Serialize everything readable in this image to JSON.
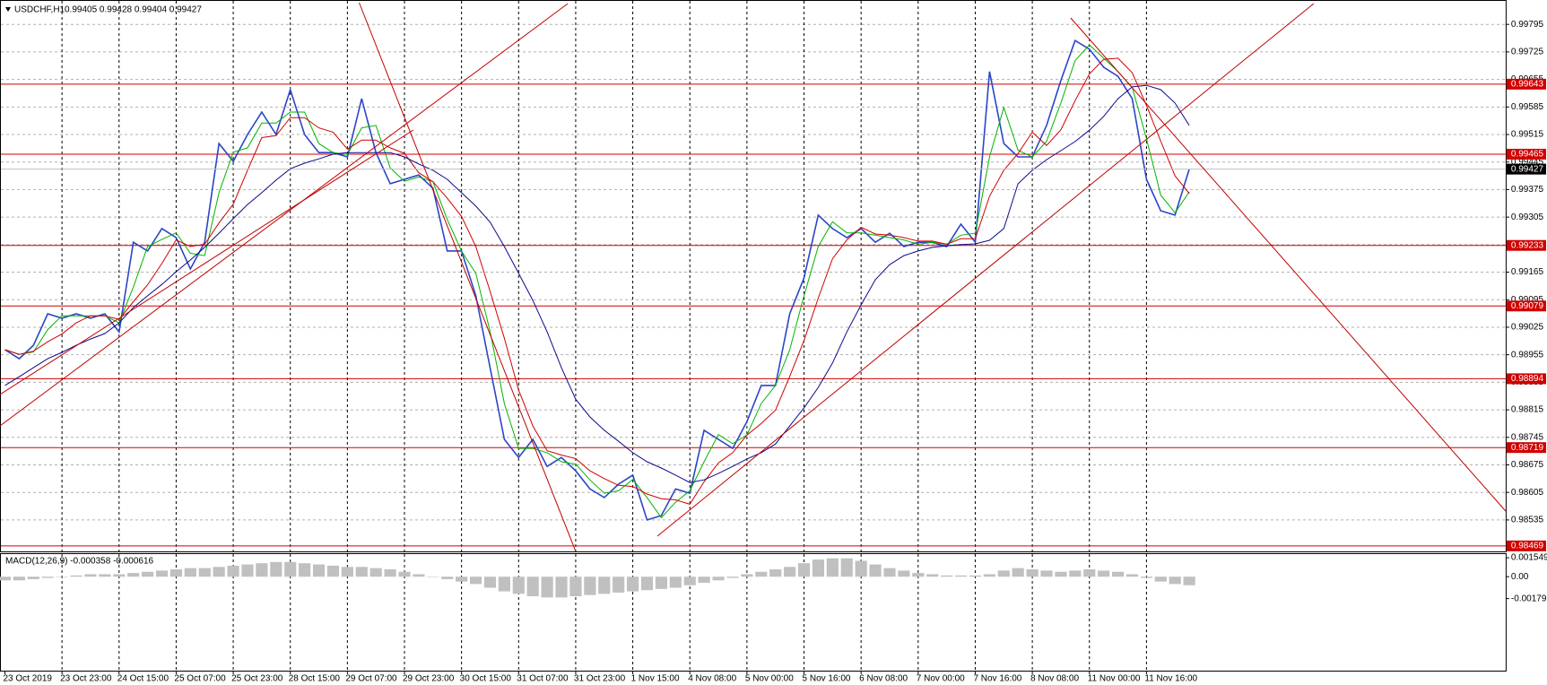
{
  "chart_data": {
    "type": "line",
    "title": "USDCHF,H1",
    "ohlc": "0.99405 0.99428 0.99404 0.99427",
    "categories": [
      "23 Oct 2019",
      null,
      null,
      null,
      "23 Oct 23:00",
      null,
      null,
      null,
      "24 Oct 15:00",
      null,
      null,
      null,
      "25 Oct 07:00",
      null,
      null,
      null,
      "25 Oct 23:00",
      null,
      null,
      null,
      "28 Oct 15:00",
      null,
      null,
      null,
      "29 Oct 07:00",
      null,
      null,
      null,
      "29 Oct 23:00",
      null,
      null,
      null,
      "30 Oct 15:00",
      null,
      null,
      null,
      "31 Oct 07:00",
      null,
      null,
      null,
      "31 Oct 23:00",
      null,
      null,
      null,
      "1 Nov 15:00",
      null,
      null,
      null,
      "4 Nov 08:00",
      null,
      null,
      null,
      "5 Nov 00:00",
      null,
      null,
      null,
      "5 Nov 16:00",
      null,
      null,
      null,
      "6 Nov 08:00",
      null,
      null,
      null,
      "7 Nov 00:00",
      null,
      null,
      null,
      "7 Nov 16:00",
      null,
      null,
      null,
      "8 Nov 08:00",
      null,
      null,
      null,
      "11 Nov 00:00",
      null,
      null,
      null,
      "11 Nov 16:00",
      null,
      null,
      null
    ],
    "series": [
      {
        "color": "#2b45c8",
        "values": [
          0.98968,
          0.98945,
          0.98979,
          0.99059,
          0.99048,
          0.99059,
          0.99048,
          0.99059,
          0.99013,
          0.99241,
          0.99219,
          0.99276,
          0.99253,
          0.99173,
          0.99241,
          0.99492,
          0.99447,
          0.99515,
          0.99572,
          0.99515,
          0.99629,
          0.99515,
          0.99469,
          0.99469,
          0.99458,
          0.99606,
          0.99469,
          0.9939,
          0.99401,
          0.99412,
          0.99378,
          0.99219,
          0.99219,
          0.99105,
          0.98922,
          0.9874,
          0.98694,
          0.9874,
          0.98671,
          0.98694,
          0.9866,
          0.98614,
          0.98592,
          0.98626,
          0.98649,
          0.98535,
          0.98546,
          0.98614,
          0.98603,
          0.98763,
          0.9874,
          0.98717,
          0.98785,
          0.98877,
          0.98877,
          0.99059,
          0.9915,
          0.9931,
          0.99276,
          0.99253,
          0.99276,
          0.99241,
          0.99264,
          0.9923,
          0.99241,
          0.99241,
          0.9923,
          0.99287,
          0.99241,
          0.99675,
          0.99492,
          0.99458,
          0.99458,
          0.99538,
          0.99652,
          0.99754,
          0.99732,
          0.99686,
          0.99663,
          0.99606,
          0.99401,
          0.99321,
          0.9931,
          0.99427
        ]
      },
      {
        "color": "#00b400",
        "values": [
          0.98968,
          0.98956,
          0.98962,
          0.99019,
          0.99054,
          0.99054,
          0.99054,
          0.99054,
          0.99036,
          0.99127,
          0.9923,
          0.99248,
          0.99265,
          0.99213,
          0.99207,
          0.99367,
          0.9947,
          0.99481,
          0.99544,
          0.99544,
          0.99572,
          0.99572,
          0.99492,
          0.99469,
          0.99464,
          0.99532,
          0.99538,
          0.9943,
          0.99396,
          0.99407,
          0.99395,
          0.99299,
          0.99219,
          0.99162,
          0.99014,
          0.98831,
          0.98717,
          0.98717,
          0.98706,
          0.98683,
          0.98677,
          0.98637,
          0.98603,
          0.98609,
          0.98638,
          0.98592,
          0.98541,
          0.9858,
          0.98609,
          0.98683,
          0.98752,
          0.98729,
          0.98751,
          0.98831,
          0.98877,
          0.98968,
          0.99105,
          0.9923,
          0.99293,
          0.99265,
          0.99265,
          0.99259,
          0.99253,
          0.99247,
          0.99236,
          0.99241,
          0.99236,
          0.99259,
          0.99264,
          0.99458,
          0.99584,
          0.99475,
          0.99458,
          0.99498,
          0.99595,
          0.99703,
          0.99743,
          0.99709,
          0.99675,
          0.99635,
          0.99504,
          0.99361,
          0.99316,
          0.99369
        ]
      },
      {
        "color": "#d00000",
        "values": [
          0.98968,
          0.98956,
          0.98964,
          0.98988,
          0.99008,
          0.99036,
          0.99054,
          0.99054,
          0.99045,
          0.9909,
          0.99133,
          0.99187,
          0.99247,
          0.9923,
          0.99236,
          0.9929,
          0.99338,
          0.99424,
          0.99507,
          0.99512,
          0.99558,
          0.99558,
          0.99532,
          0.99521,
          0.99478,
          0.99501,
          0.99501,
          0.99481,
          0.99467,
          0.99418,
          0.99395,
          0.99353,
          0.99307,
          0.9923,
          0.99116,
          0.98997,
          0.98865,
          0.98774,
          0.98711,
          0.987,
          0.98691,
          0.9866,
          0.9864,
          0.98623,
          0.9862,
          0.98601,
          0.98589,
          0.98586,
          0.98575,
          0.98632,
          0.9868,
          0.98706,
          0.98751,
          0.9878,
          0.98814,
          0.989,
          0.98991,
          0.99099,
          0.99199,
          0.99247,
          0.99279,
          0.99262,
          0.99259,
          0.99253,
          0.99244,
          0.99244,
          0.99236,
          0.9925,
          0.9925,
          0.99358,
          0.99424,
          0.99467,
          0.99521,
          0.99487,
          0.99527,
          0.99601,
          0.99669,
          0.99706,
          0.99709,
          0.99672,
          0.99589,
          0.99498,
          0.9941,
          0.99365
        ]
      },
      {
        "color": "#0a0a8c",
        "values": [
          0.98877,
          0.98899,
          0.98922,
          0.98945,
          0.98961,
          0.98979,
          0.98995,
          0.99009,
          0.99036,
          0.99075,
          0.99105,
          0.99134,
          0.99166,
          0.99196,
          0.99228,
          0.99264,
          0.99301,
          0.99337,
          0.99367,
          0.99399,
          0.99428,
          0.99442,
          0.99453,
          0.99465,
          0.99469,
          0.99469,
          0.99469,
          0.99469,
          0.99458,
          0.9944,
          0.99424,
          0.99401,
          0.99367,
          0.99333,
          0.99292,
          0.9923,
          0.99162,
          0.99093,
          0.99013,
          0.98922,
          0.98842,
          0.98797,
          0.98763,
          0.98735,
          0.98706,
          0.98683,
          0.98667,
          0.98649,
          0.9863,
          0.98637,
          0.98653,
          0.98671,
          0.9869,
          0.98706,
          0.98728,
          0.98774,
          0.9882,
          0.98872,
          0.98934,
          0.99013,
          0.99082,
          0.99146,
          0.99184,
          0.99207,
          0.99219,
          0.99228,
          0.99232,
          0.99235,
          0.99237,
          0.99246,
          0.99276,
          0.9939,
          0.99424,
          0.99451,
          0.99474,
          0.99497,
          0.99526,
          0.99561,
          0.99606,
          0.99636,
          0.9964,
          0.99629,
          0.99595,
          0.99538
        ]
      }
    ],
    "ylim": [
      0.98455,
      0.99857
    ],
    "yticks": [
      0.99795,
      0.99725,
      0.99655,
      0.99585,
      0.99515,
      0.99445,
      0.99375,
      0.99305,
      0.99235,
      0.99165,
      0.99095,
      0.99025,
      0.98955,
      0.98885,
      0.98815,
      0.98745,
      0.98675,
      0.98605,
      0.98535
    ],
    "grid": true,
    "levels": [
      0.99643,
      0.99465,
      0.99233,
      0.99079,
      0.98894,
      0.98719,
      0.98469
    ],
    "level_color": "#d00000",
    "current_price": 0.99427,
    "macd": {
      "type": "histogram",
      "label": "MACD(12,26,9) -0.000358 -0.000616",
      "color": "#c0c0c0",
      "values": [
        -0.0003,
        -0.0003,
        -0.0002,
        -0.0001,
        0,
        0.0001,
        0.0002,
        0.0002,
        0.0002,
        0.0003,
        0.0004,
        0.0005,
        0.0006,
        0.0007,
        0.0007,
        0.0008,
        0.0009,
        0.001,
        0.0011,
        0.0012,
        0.0012,
        0.0011,
        0.001,
        0.0009,
        0.0008,
        0.0008,
        0.0007,
        0.0006,
        0.0004,
        0.0002,
        0,
        -0.0002,
        -0.0004,
        -0.0006,
        -0.0009,
        -0.0012,
        -0.0014,
        -0.0016,
        -0.0017,
        -0.0017,
        -0.0016,
        -0.0015,
        -0.0014,
        -0.0013,
        -0.0012,
        -0.0011,
        -0.001,
        -0.0009,
        -0.0007,
        -0.0005,
        -0.0003,
        -0.0001,
        0.0002,
        0.0004,
        0.0006,
        0.0008,
        0.0011,
        0.0014,
        0.0015,
        0.0015,
        0.0013,
        0.001,
        0.0007,
        0.0005,
        0.0003,
        0.0002,
        0.0001,
        0.0001,
        0.0001,
        0.0002,
        0.0005,
        0.0007,
        0.0006,
        0.0005,
        0.0004,
        0.0005,
        0.0006,
        0.0005,
        0.0004,
        0.0002,
        -0.0001,
        -0.0004,
        -0.0006,
        -0.0007
      ],
      "ylim": [
        -0.00768,
        0.00192
      ],
      "yticks": [
        0.001549,
        {
          "value": 0,
          "label": "0.00"
        },
        -0.00179
      ]
    }
  }
}
